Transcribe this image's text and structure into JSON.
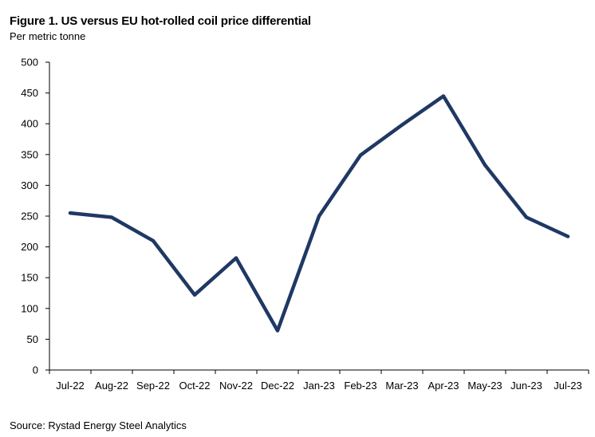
{
  "chart_data": {
    "type": "line",
    "title": "Figure 1. US versus EU hot-rolled coil price differential",
    "subtitle": "Per metric tonne",
    "source": "Source: Rystad Energy Steel Analytics",
    "categories": [
      "Jul-22",
      "Aug-22",
      "Sep-22",
      "Oct-22",
      "Nov-22",
      "Dec-22",
      "Jan-23",
      "Feb-23",
      "Mar-23",
      "Apr-23",
      "May-23",
      "Jun-23",
      "Jul-23"
    ],
    "series": [
      {
        "values": [
          255,
          248,
          210,
          122,
          182,
          64,
          250,
          349,
          398,
          445,
          333,
          248,
          217
        ],
        "color": "#1f3864"
      }
    ],
    "ylim": [
      0,
      500
    ],
    "yticks": [
      "0",
      "50",
      "100",
      "150",
      "200",
      "250",
      "300",
      "350",
      "400",
      "450",
      "500"
    ],
    "xlabel": "",
    "ylabel": "",
    "grid": false,
    "legend": "none"
  }
}
